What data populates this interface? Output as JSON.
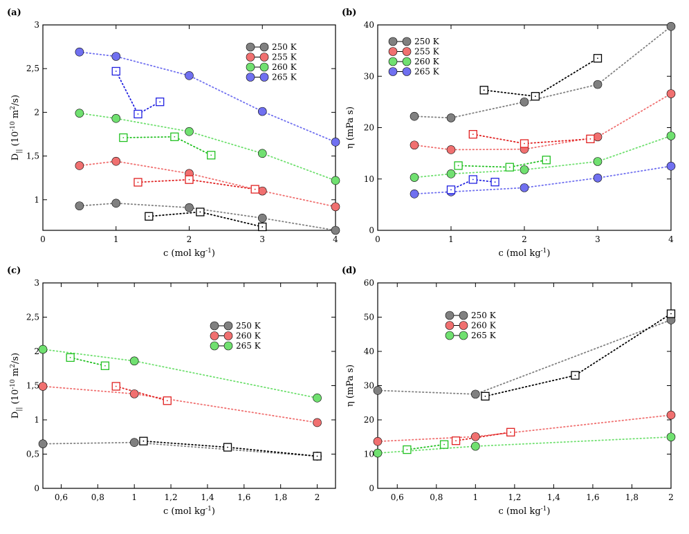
{
  "chart_data": [
    {
      "panel": "(a)",
      "type": "scatter",
      "xlabel": "c (mol kg-1)",
      "ylabel": "D|| (10-10 m2/s)",
      "xlim": [
        0,
        4
      ],
      "ylim": [
        0.65,
        3
      ],
      "xticks": [
        0,
        1,
        2,
        3,
        4
      ],
      "xtick_labels": [
        "0",
        "1",
        "2",
        "3",
        "4"
      ],
      "yticks": [
        1,
        1.5,
        2,
        2.5,
        3
      ],
      "ytick_labels": [
        "1",
        "1,5",
        "2",
        "2,5",
        "3"
      ],
      "legend": [
        "250 K",
        "255 K",
        "260 K",
        "265 K"
      ],
      "legend_position": "top-right",
      "series": [
        {
          "name": "250 K",
          "color": "#808080",
          "marker": "circle",
          "x": [
            0.5,
            1,
            2,
            3,
            4
          ],
          "y": [
            0.93,
            0.96,
            0.91,
            0.79,
            0.65
          ]
        },
        {
          "name": "255 K",
          "color": "#f07070",
          "marker": "circle",
          "x": [
            0.5,
            1,
            2,
            3,
            4
          ],
          "y": [
            1.39,
            1.44,
            1.3,
            1.1,
            0.92
          ]
        },
        {
          "name": "260 K",
          "color": "#70e070",
          "marker": "circle",
          "x": [
            0.5,
            1,
            2,
            3,
            4
          ],
          "y": [
            1.99,
            1.93,
            1.78,
            1.53,
            1.22
          ]
        },
        {
          "name": "265 K",
          "color": "#7070f0",
          "marker": "circle",
          "x": [
            0.5,
            1,
            2,
            3,
            4
          ],
          "y": [
            2.69,
            2.64,
            2.42,
            2.01,
            1.66
          ]
        },
        {
          "name": "250 K (squares)",
          "color": "#000000",
          "marker": "square",
          "x": [
            1.45,
            2.15,
            3.0
          ],
          "y": [
            0.81,
            0.86,
            0.69
          ]
        },
        {
          "name": "255 K (squares)",
          "color": "#e02020",
          "marker": "square",
          "x": [
            1.3,
            2.0,
            2.9
          ],
          "y": [
            1.2,
            1.23,
            1.12
          ]
        },
        {
          "name": "260 K (squares)",
          "color": "#20c020",
          "marker": "square",
          "x": [
            1.1,
            1.8,
            2.3
          ],
          "y": [
            1.71,
            1.72,
            1.51
          ]
        },
        {
          "name": "265 K (squares)",
          "color": "#2020e0",
          "marker": "square",
          "x": [
            1.0,
            1.3,
            1.6
          ],
          "y": [
            2.47,
            1.98,
            2.12
          ]
        }
      ]
    },
    {
      "panel": "(b)",
      "type": "scatter",
      "xlabel": "c (mol kg-1)",
      "ylabel": "η (mPa s)",
      "xlim": [
        0,
        4
      ],
      "ylim": [
        0,
        40
      ],
      "xticks": [
        0,
        1,
        2,
        3,
        4
      ],
      "xtick_labels": [
        "0",
        "1",
        "2",
        "3",
        "4"
      ],
      "yticks": [
        0,
        10,
        20,
        30,
        40
      ],
      "ytick_labels": [
        "0",
        "10",
        "20",
        "30",
        "40"
      ],
      "legend": [
        "250 K",
        "255 K",
        "260 K",
        "265 K"
      ],
      "legend_position": "top-left",
      "series": [
        {
          "name": "250 K",
          "color": "#808080",
          "marker": "circle",
          "x": [
            0.5,
            1,
            2,
            3,
            4
          ],
          "y": [
            22.2,
            21.9,
            25.0,
            28.4,
            39.7
          ]
        },
        {
          "name": "255 K",
          "color": "#f07070",
          "marker": "circle",
          "x": [
            0.5,
            1,
            2,
            3,
            4
          ],
          "y": [
            16.6,
            15.7,
            15.8,
            18.2,
            26.6
          ]
        },
        {
          "name": "260 K",
          "color": "#70e070",
          "marker": "circle",
          "x": [
            0.5,
            1,
            2,
            3,
            4
          ],
          "y": [
            10.3,
            11.0,
            11.8,
            13.4,
            18.4
          ]
        },
        {
          "name": "265 K",
          "color": "#7070f0",
          "marker": "circle",
          "x": [
            0.5,
            1,
            2,
            3,
            4
          ],
          "y": [
            7.1,
            7.5,
            8.3,
            10.2,
            12.5
          ]
        },
        {
          "name": "250 K (squares)",
          "color": "#000000",
          "marker": "square",
          "x": [
            1.45,
            2.15,
            3.0
          ],
          "y": [
            27.3,
            26.1,
            33.5
          ]
        },
        {
          "name": "255 K (squares)",
          "color": "#e02020",
          "marker": "square",
          "x": [
            1.3,
            2.0,
            2.9
          ],
          "y": [
            18.7,
            16.9,
            17.8
          ]
        },
        {
          "name": "260 K (squares)",
          "color": "#20c020",
          "marker": "square",
          "x": [
            1.1,
            1.8,
            2.3
          ],
          "y": [
            12.6,
            12.3,
            13.7
          ]
        },
        {
          "name": "265 K (squares)",
          "color": "#2020e0",
          "marker": "square",
          "x": [
            1.0,
            1.3,
            1.6
          ],
          "y": [
            7.9,
            9.9,
            9.4
          ]
        }
      ]
    },
    {
      "panel": "(c)",
      "type": "scatter",
      "xlabel": "c (mol kg-1)",
      "ylabel": "D|| (10-10 m2/s)",
      "xlim": [
        0.5,
        2.1
      ],
      "ylim": [
        0,
        3
      ],
      "xticks": [
        0.6,
        0.8,
        1.0,
        1.2,
        1.4,
        1.6,
        1.8,
        2.0
      ],
      "xtick_labels": [
        "0,6",
        "0,8",
        "1",
        "1,2",
        "1,4",
        "1,6",
        "1,8",
        "2"
      ],
      "yticks": [
        0,
        0.5,
        1,
        1.5,
        2,
        2.5,
        3
      ],
      "ytick_labels": [
        "0",
        "0,5",
        "1",
        "1,5",
        "2",
        "2,5",
        "3"
      ],
      "legend": [
        "250 K",
        "260 K",
        "265 K"
      ],
      "legend_position": "top-right",
      "series": [
        {
          "name": "250 K",
          "color": "#808080",
          "marker": "circle",
          "x": [
            0.5,
            1,
            2
          ],
          "y": [
            0.65,
            0.67,
            0.47
          ]
        },
        {
          "name": "260 K",
          "color": "#f07070",
          "marker": "circle",
          "x": [
            0.5,
            1,
            2
          ],
          "y": [
            1.49,
            1.38,
            0.96
          ]
        },
        {
          "name": "265 K",
          "color": "#70e070",
          "marker": "circle",
          "x": [
            0.5,
            1,
            2
          ],
          "y": [
            2.03,
            1.86,
            1.32
          ]
        },
        {
          "name": "250 K (squares)",
          "color": "#000000",
          "marker": "square",
          "x": [
            1.05,
            1.51,
            2.0
          ],
          "y": [
            0.69,
            0.6,
            0.47
          ]
        },
        {
          "name": "260 K (squares)",
          "color": "#e02020",
          "marker": "square",
          "x": [
            0.9,
            1.18
          ],
          "y": [
            1.49,
            1.28
          ]
        },
        {
          "name": "265 K (squares)",
          "color": "#20c020",
          "marker": "square",
          "x": [
            0.65,
            0.84
          ],
          "y": [
            1.91,
            1.79
          ]
        }
      ]
    },
    {
      "panel": "(d)",
      "type": "scatter",
      "xlabel": "c (mol kg-1)",
      "ylabel": "η (mPa s)",
      "xlim": [
        0.5,
        2.0
      ],
      "ylim": [
        0,
        60
      ],
      "xticks": [
        0.6,
        0.8,
        1.0,
        1.2,
        1.4,
        1.6,
        1.8,
        2.0
      ],
      "xtick_labels": [
        "0,6",
        "0,8",
        "1",
        "1,2",
        "1,4",
        "1,6",
        "1,8",
        "2"
      ],
      "yticks": [
        0,
        10,
        20,
        30,
        40,
        50,
        60
      ],
      "ytick_labels": [
        "0",
        "10",
        "20",
        "30",
        "40",
        "50",
        "60"
      ],
      "legend": [
        "250 K",
        "260 K",
        "265 K"
      ],
      "legend_position": "top-left",
      "series": [
        {
          "name": "250 K",
          "color": "#808080",
          "marker": "circle",
          "x": [
            0.5,
            1,
            2
          ],
          "y": [
            28.6,
            27.5,
            49.2
          ]
        },
        {
          "name": "260 K",
          "color": "#f07070",
          "marker": "circle",
          "x": [
            0.5,
            1,
            2
          ],
          "y": [
            13.7,
            15.1,
            21.4
          ]
        },
        {
          "name": "265 K",
          "color": "#70e070",
          "marker": "circle",
          "x": [
            0.5,
            1,
            2
          ],
          "y": [
            10.3,
            12.3,
            15.0
          ]
        },
        {
          "name": "250 K (squares)",
          "color": "#000000",
          "marker": "square",
          "x": [
            1.05,
            1.51,
            2.0
          ],
          "y": [
            26.9,
            33.0,
            51.0
          ]
        },
        {
          "name": "260 K (squares)",
          "color": "#e02020",
          "marker": "square",
          "x": [
            0.9,
            1.18
          ],
          "y": [
            13.9,
            16.4
          ]
        },
        {
          "name": "265 K (squares)",
          "color": "#20c020",
          "marker": "square",
          "x": [
            0.65,
            0.84
          ],
          "y": [
            11.3,
            12.8
          ]
        }
      ]
    }
  ]
}
